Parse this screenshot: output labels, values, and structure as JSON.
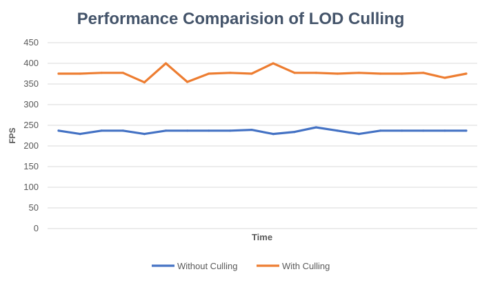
{
  "chart_data": {
    "type": "line",
    "title": "Performance Comparision of LOD Culling",
    "xlabel": "Time",
    "ylabel": "FPS",
    "ylim": [
      0,
      450
    ],
    "yticks": [
      0,
      50,
      100,
      150,
      200,
      250,
      300,
      350,
      400,
      450
    ],
    "grid": true,
    "legend_position": "bottom",
    "x": [
      1,
      2,
      3,
      4,
      5,
      6,
      7,
      8,
      9,
      10,
      11,
      12,
      13,
      14,
      15,
      16,
      17,
      18,
      19,
      20
    ],
    "series": [
      {
        "name": "Without Culling",
        "color": "#4472c4",
        "values": [
          237,
          229,
          237,
          237,
          229,
          237,
          237,
          237,
          237,
          239,
          229,
          234,
          245,
          237,
          229,
          237,
          237,
          237,
          237,
          237
        ]
      },
      {
        "name": "With Culling",
        "color": "#ed7d31",
        "values": [
          375,
          375,
          377,
          377,
          354,
          400,
          355,
          375,
          377,
          375,
          400,
          377,
          377,
          375,
          377,
          375,
          375,
          377,
          365,
          375
        ]
      }
    ],
    "gridline_color": "#d9d9d9"
  }
}
